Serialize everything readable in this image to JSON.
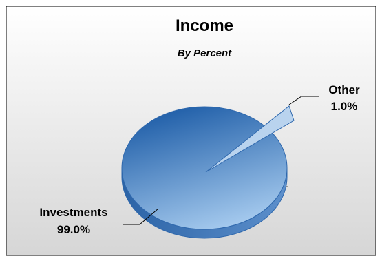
{
  "chart_data": {
    "type": "pie",
    "title": "Income",
    "subtitle": "By Percent",
    "slices": [
      {
        "name": "Investments",
        "value": 99.0,
        "label": "99.0%",
        "color": "#3f7ac0"
      },
      {
        "name": "Other",
        "value": 1.0,
        "label": "1.0%",
        "color": "#b9d3ee"
      }
    ],
    "exploded_slice": "Other",
    "style": "3d",
    "legend": "none",
    "colors": {
      "background_top": "#ffffff",
      "background_bottom": "#d6d6d6",
      "pie_dark": "#1f5ea8",
      "pie_light": "#9cc2e8",
      "edge": "#2f68ad"
    }
  }
}
